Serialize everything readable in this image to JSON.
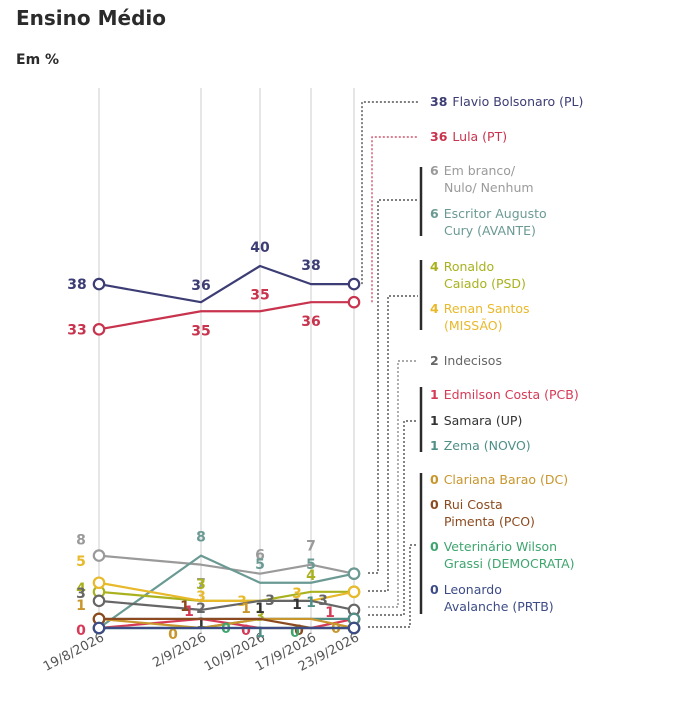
{
  "header": {
    "title": "Ensino Médio",
    "subtitle": "Em %"
  },
  "chart_data": {
    "type": "line",
    "title": "Ensino Médio",
    "subtitle": "Em %",
    "x": [
      "19/8/2026",
      "2/9/2026",
      "10/9/2026",
      "17/9/2026",
      "23/9/2026"
    ],
    "ylim": [
      0,
      40
    ],
    "grid": "vertical",
    "legend": "right",
    "series": [
      {
        "name": "Flavio Bolsonaro (PL)",
        "final": "38",
        "color": "#3d3d75",
        "values": [
          38,
          36,
          40,
          38,
          38
        ],
        "labels": [
          "38",
          "36",
          "40",
          "38",
          ""
        ]
      },
      {
        "name": "Lula (PT)",
        "final": "36",
        "color": "#c8334d",
        "values": [
          33,
          35,
          35,
          36,
          36
        ],
        "labels": [
          "33",
          "35",
          "35",
          "36",
          ""
        ]
      },
      {
        "name": "Em branco/ Nulo/ Nenhum",
        "final": "6",
        "color": "#9a9a9a",
        "values": [
          8,
          7,
          6,
          7,
          6
        ],
        "labels": [
          "8",
          "7",
          "6",
          "7",
          ""
        ]
      },
      {
        "name": "Escritor Augusto Cury (AVANTE)",
        "final": "6",
        "color": "#6a9a93",
        "values": [
          0,
          8,
          5,
          5,
          6
        ],
        "labels": [
          "",
          "8",
          "5",
          "5",
          ""
        ]
      },
      {
        "name": "Ronaldo Caiado (PSD)",
        "final": "4",
        "color": "#a9b21e",
        "values": [
          4,
          3,
          3,
          4,
          4
        ],
        "labels": [
          "4",
          "3",
          "3",
          "4",
          ""
        ]
      },
      {
        "name": "Renan Santos (MISSÃO)",
        "final": "4",
        "color": "#e8b92a",
        "values": [
          5,
          3,
          3,
          3,
          4
        ],
        "labels": [
          "5",
          "3",
          "3",
          "3",
          ""
        ]
      },
      {
        "name": "Indecisos",
        "final": "2",
        "color": "#666666",
        "values": [
          3,
          2,
          3,
          3,
          2
        ],
        "labels": [
          "3",
          "2",
          "3",
          "3",
          ""
        ]
      },
      {
        "name": "Edmilson Costa (PCB)",
        "final": "1",
        "color": "#d63a57",
        "values": [
          0,
          1,
          0,
          0,
          1
        ],
        "labels": [
          "0",
          "1",
          "0",
          "",
          "1"
        ]
      },
      {
        "name": "Samara (UP)",
        "final": "1",
        "color": "#333333",
        "values": [
          1,
          1,
          1,
          1,
          1
        ],
        "labels": [
          "",
          "1",
          "1",
          "1",
          ""
        ]
      },
      {
        "name": "Zema (NOVO)",
        "final": "1",
        "color": "#4f8f88",
        "values": [
          0,
          0,
          1,
          1,
          1
        ],
        "labels": [
          "",
          "",
          "1",
          "1",
          ""
        ]
      },
      {
        "name": "Clariana Barao (DC)",
        "final": "0",
        "color": "#c8962d",
        "values": [
          1,
          0,
          1,
          1,
          0
        ],
        "labels": [
          "1",
          "0",
          "1",
          "",
          "0"
        ]
      },
      {
        "name": "Rui Costa Pimenta (PCO)",
        "final": "0",
        "color": "#8b4a1f",
        "values": [
          1,
          1,
          1,
          0,
          0
        ],
        "labels": [
          "",
          "1",
          "",
          "0",
          ""
        ]
      },
      {
        "name": "Veterinário Wilson Grassi (DEMOCRATA)",
        "final": "0",
        "color": "#3fa56f",
        "values": [
          0,
          0,
          0,
          0,
          0
        ],
        "labels": [
          "",
          "",
          "0",
          "0",
          ""
        ]
      },
      {
        "name": "Leonardo Avalanche (PRTB)",
        "final": "0",
        "color": "#3d4c86",
        "values": [
          0,
          0,
          0,
          0,
          0
        ],
        "labels": [
          "",
          "",
          "",
          "",
          ""
        ]
      }
    ]
  },
  "legend": [
    {
      "value": "38",
      "lines": [
        "Flavio Bolsonaro (PL)"
      ],
      "color": "#3d3d75"
    },
    {
      "value": "36",
      "lines": [
        "Lula (PT)"
      ],
      "color": "#c8334d"
    },
    {
      "value": "6",
      "lines": [
        "Em branco/",
        "Nulo/ Nenhum"
      ],
      "color": "#9a9a9a"
    },
    {
      "value": "6",
      "lines": [
        "Escritor Augusto",
        "Cury (AVANTE)"
      ],
      "color": "#6a9a93"
    },
    {
      "value": "4",
      "lines": [
        "Ronaldo",
        "Caiado (PSD)"
      ],
      "color": "#a9b21e"
    },
    {
      "value": "4",
      "lines": [
        "Renan Santos",
        "(MISSÃO)"
      ],
      "color": "#e8b92a"
    },
    {
      "value": "2",
      "lines": [
        "Indecisos"
      ],
      "color": "#666666"
    },
    {
      "value": "1",
      "lines": [
        "Edmilson Costa (PCB)"
      ],
      "color": "#d63a57"
    },
    {
      "value": "1",
      "lines": [
        "Samara (UP)"
      ],
      "color": "#333333"
    },
    {
      "value": "1",
      "lines": [
        "Zema (NOVO)"
      ],
      "color": "#4f8f88"
    },
    {
      "value": "0",
      "lines": [
        "Clariana Barao (DC)"
      ],
      "color": "#c8962d"
    },
    {
      "value": "0",
      "lines": [
        "Rui Costa",
        "Pimenta (PCO)"
      ],
      "color": "#8b4a1f"
    },
    {
      "value": "0",
      "lines": [
        "Veterinário Wilson",
        "Grassi (DEMOCRATA)"
      ],
      "color": "#3fa56f"
    },
    {
      "value": "0",
      "lines": [
        "Leonardo",
        "Avalanche (PRTB)"
      ],
      "color": "#3d4c86"
    }
  ]
}
